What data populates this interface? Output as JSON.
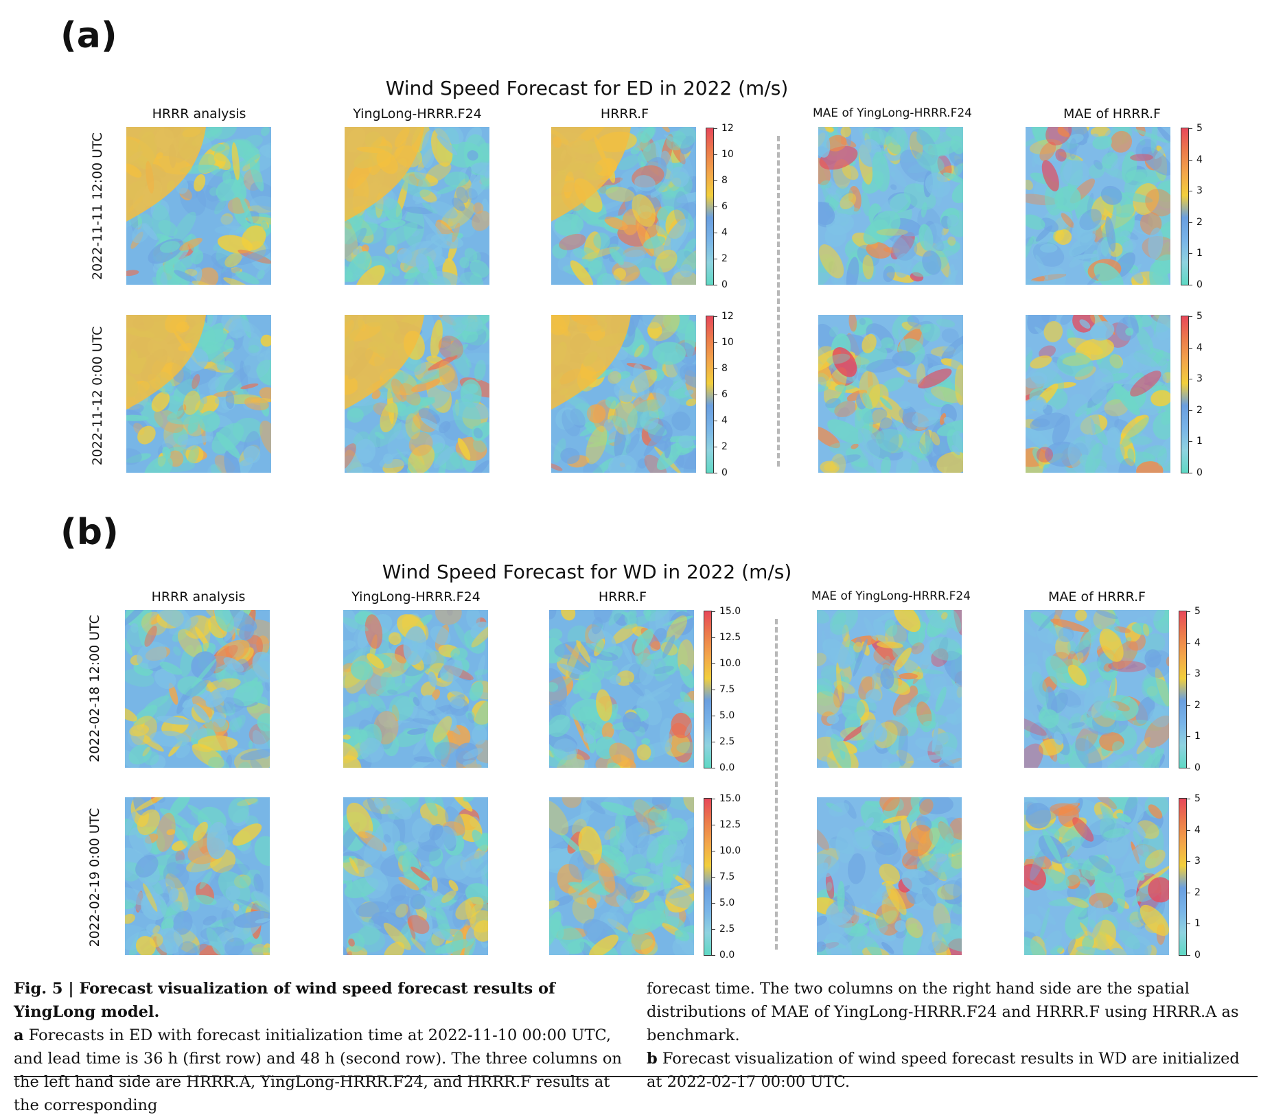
{
  "panels": [
    {
      "letter": "(a)",
      "title": "Wind Speed Forecast for ED in 2022 (m/s)",
      "column_titles": [
        "HRRR analysis",
        "YingLong-HRRR.F24",
        "HRRR.F",
        "MAE of YingLong-HRRR.F24",
        "MAE of HRRR.F"
      ],
      "row_labels": [
        "2022-11-11 12:00 UTC",
        "2022-11-12 0:00 UTC"
      ],
      "speed_ticks": [
        "12",
        "10",
        "8",
        "6",
        "4",
        "2",
        "0"
      ],
      "mae_ticks": [
        "5",
        "4",
        "3",
        "2",
        "1",
        "0"
      ]
    },
    {
      "letter": "(b)",
      "title": "Wind Speed Forecast for WD in 2022 (m/s)",
      "column_titles": [
        "HRRR analysis",
        "YingLong-HRRR.F24",
        "HRRR.F",
        "MAE of YingLong-HRRR.F24",
        "MAE of HRRR.F"
      ],
      "row_labels": [
        "2022-02-18 12:00 UTC",
        "2022-02-19 0:00 UTC"
      ],
      "speed_ticks": [
        "15.0",
        "12.5",
        "10.0",
        "7.5",
        "5.0",
        "2.5",
        "0.0"
      ],
      "mae_ticks": [
        "5",
        "4",
        "3",
        "2",
        "1",
        "0"
      ]
    }
  ],
  "colormap": [
    "#5fd8c4",
    "#8fd3e0",
    "#79b4e8",
    "#6a9fe0",
    "#f2cf3c",
    "#f3a64a",
    "#ec7b4b",
    "#e8485a"
  ],
  "caption": {
    "left_bold": "Fig. 5 | Forecast visualization of wind speed forecast results of YingLong model.",
    "left_a_label": "a",
    "left_a_text": " Forecasts in ED with forecast initialization time at 2022-11-10 00:00 UTC, and lead time is 36 h (first row) and 48 h (second row). The three columns on the left hand side are HRRR.A, YingLong-HRRR.F24, and HRRR.F results at the corresponding",
    "right_text": "forecast time. The two columns on the right hand side are the spatial distributions of MAE of YingLong-HRRR.F24 and HRRR.F using HRRR.A as benchmark.",
    "right_b_label": "b",
    "right_b_text": " Forecast visualization of wind speed forecast results in WD are initialized at 2022-02-17 00:00 UTC."
  }
}
